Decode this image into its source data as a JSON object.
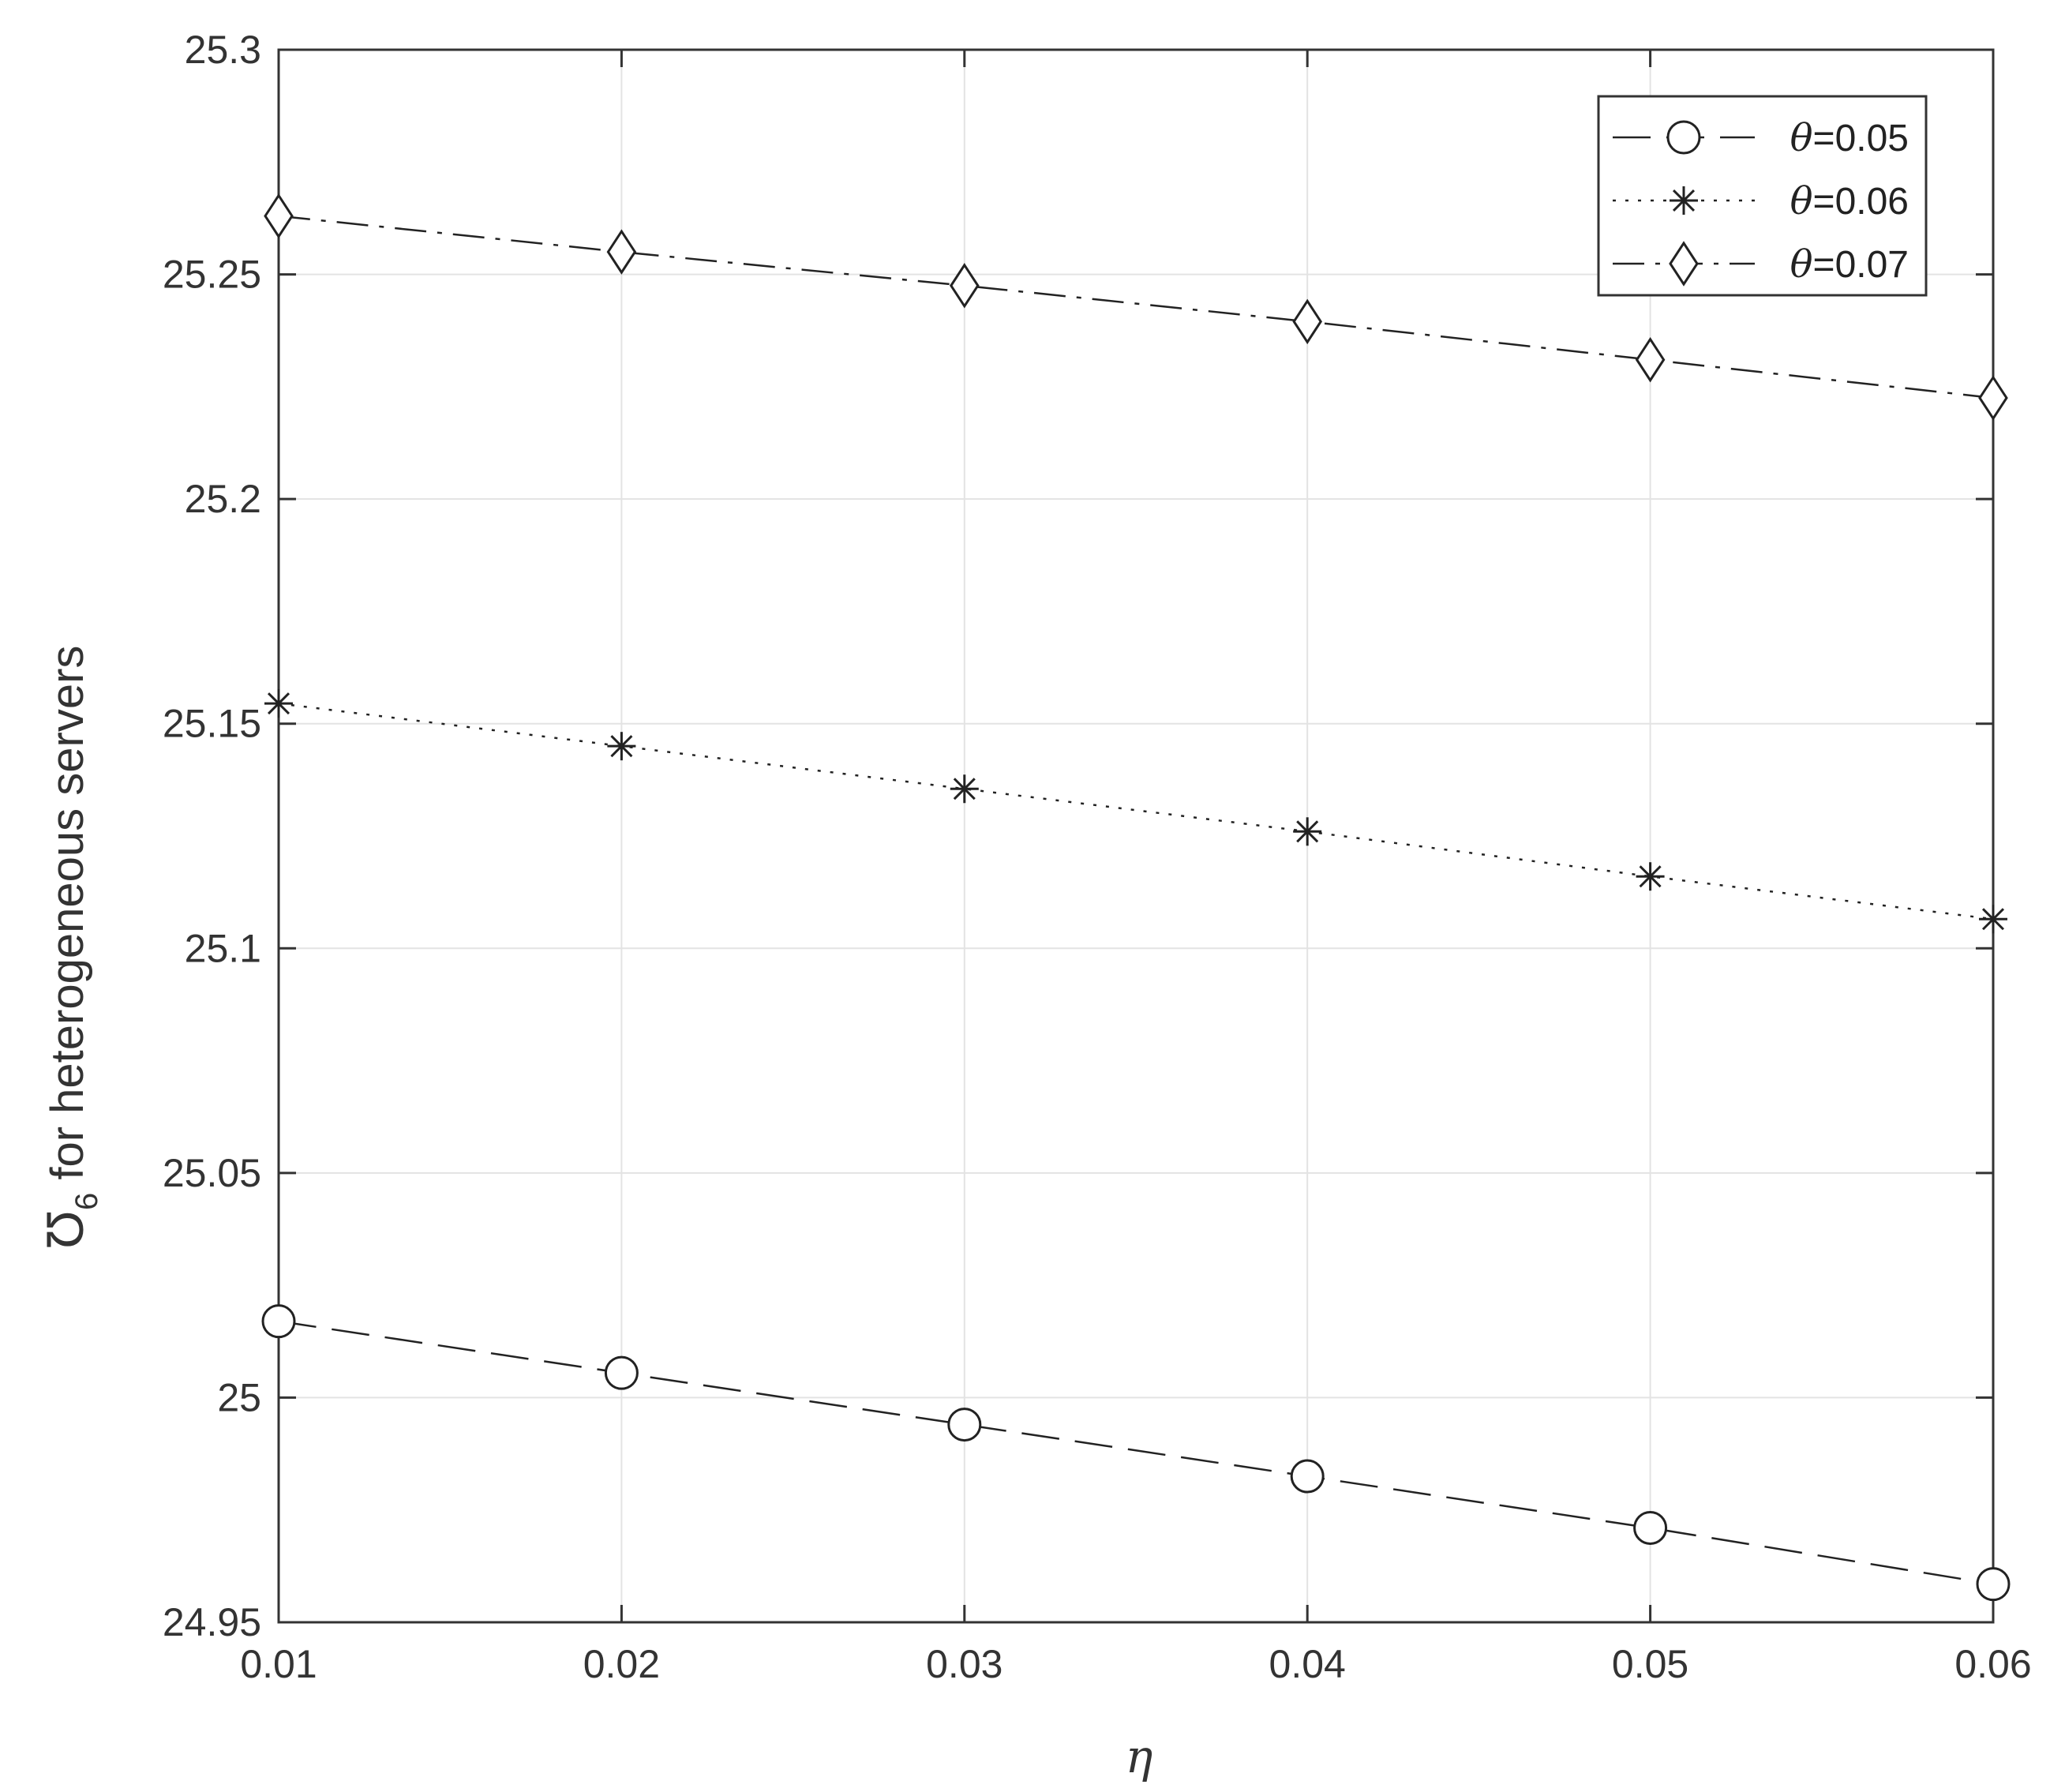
{
  "chart_data": {
    "type": "line",
    "xlabel": "η",
    "ylabel_symbol": "Ʊ",
    "ylabel_subscript": "6",
    "ylabel_text": " for heterogeneous servers",
    "x": [
      0.01,
      0.02,
      0.03,
      0.04,
      0.05,
      0.06
    ],
    "xlim": [
      0.01,
      0.06
    ],
    "ylim": [
      24.95,
      25.3
    ],
    "xticks": [
      0.01,
      0.02,
      0.03,
      0.04,
      0.05,
      0.06
    ],
    "xtick_labels": [
      "0.01",
      "0.02",
      "0.03",
      "0.04",
      "0.05",
      "0.06"
    ],
    "yticks": [
      24.95,
      25,
      25.05,
      25.1,
      25.15,
      25.2,
      25.25,
      25.3
    ],
    "ytick_labels": [
      "24.95",
      "25",
      "25.05",
      "25.1",
      "25.15",
      "25.2",
      "25.25",
      "25.3"
    ],
    "grid": true,
    "legend_position": "top-right",
    "series": [
      {
        "legend_symbol": "θ",
        "legend_value": "=0.05",
        "line_style": "dashed",
        "marker": "circle",
        "values": [
          25.017,
          25.0055,
          24.994,
          24.9825,
          24.971,
          24.9585
        ]
      },
      {
        "legend_symbol": "θ",
        "legend_value": "=0.06",
        "line_style": "dotted",
        "marker": "asterisk",
        "values": [
          25.1545,
          25.145,
          25.1355,
          25.126,
          25.116,
          25.1065
        ]
      },
      {
        "legend_symbol": "θ",
        "legend_value": "=0.07",
        "line_style": "dashdot",
        "marker": "diamond",
        "values": [
          25.263,
          25.255,
          25.2475,
          25.2395,
          25.231,
          25.2225
        ]
      }
    ],
    "colors": {
      "line": "#222222",
      "axis": "#333333",
      "grid": "#e3e3e3"
    }
  }
}
